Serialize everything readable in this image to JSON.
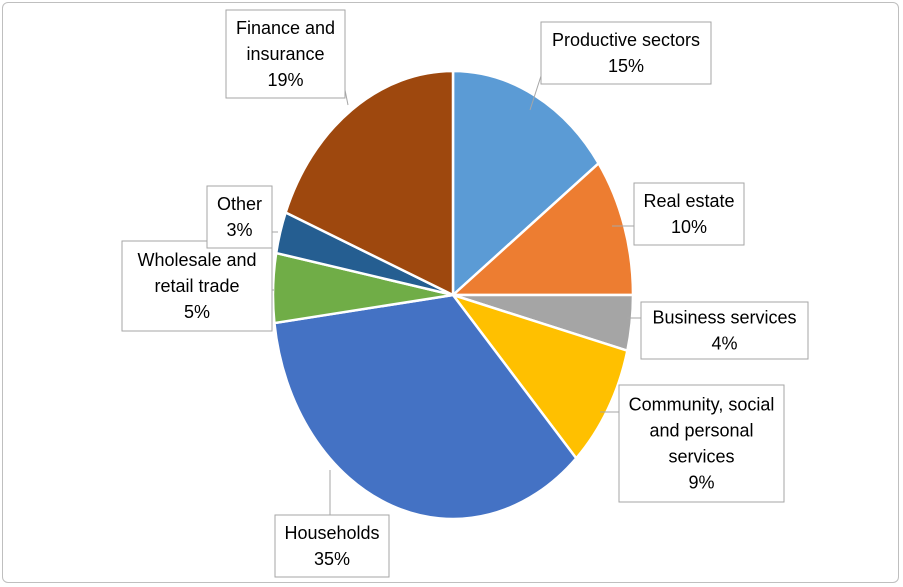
{
  "chart_data": {
    "type": "pie",
    "title": "",
    "slices": [
      {
        "label": "Productive sectors",
        "value": 15,
        "value_label": "15%",
        "color": "#5b9bd5"
      },
      {
        "label": "Real estate",
        "value": 10,
        "value_label": "10%",
        "color": "#ed7d31"
      },
      {
        "label": "Business services",
        "value": 4,
        "value_label": "4%",
        "color": "#a5a5a5"
      },
      {
        "label": "Community, social and personal services",
        "value": 9,
        "value_label": "9%",
        "color": "#ffc000"
      },
      {
        "label": "Households",
        "value": 35,
        "value_label": "35%",
        "color": "#4472c4"
      },
      {
        "label": "Wholesale and retail trade",
        "value": 5,
        "value_label": "5%",
        "color": "#70ad47"
      },
      {
        "label": "Other",
        "value": 3,
        "value_label": "3%",
        "color": "#255e91"
      },
      {
        "label": "Finance and insurance",
        "value": 19,
        "value_label": "19%",
        "color": "#9e480e"
      }
    ],
    "legend": "none",
    "data_labels": "callouts"
  }
}
